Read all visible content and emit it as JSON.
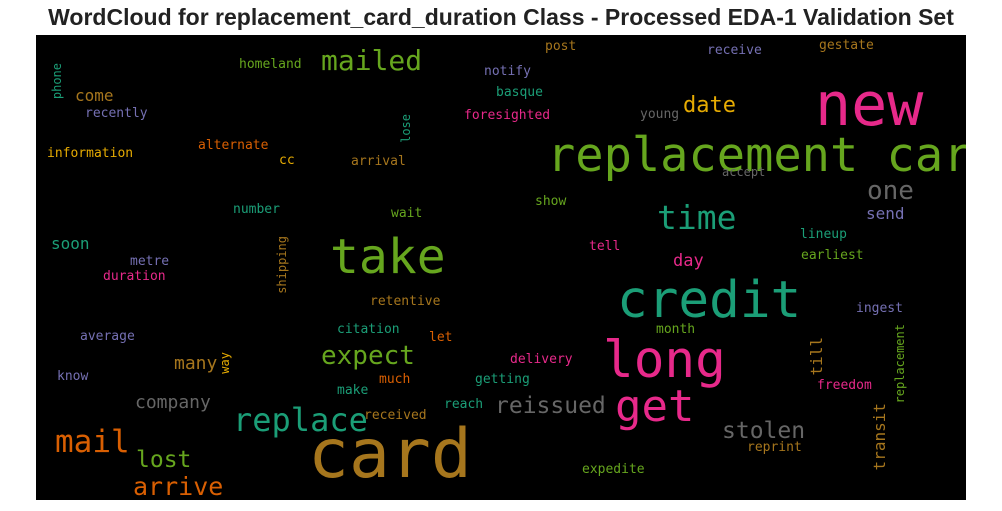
{
  "title": "WordCloud for replacement_card_duration Class - Processed EDA-1 Validation Set",
  "chart_data": {
    "type": "wordcloud",
    "title": "WordCloud for replacement_card_duration Class - Processed EDA-1 Validation Set",
    "background": "#000000",
    "palette": [
      "#1b9e77",
      "#d95f02",
      "#7570b3",
      "#e7298a",
      "#66a61e",
      "#e6ab02",
      "#a6761d",
      "#666666"
    ],
    "words": [
      {
        "text": "new",
        "color": "#e7298a",
        "weight": 60
      },
      {
        "text": "replacement card",
        "color": "#66a61e",
        "weight": 47
      },
      {
        "text": "take",
        "color": "#66a61e",
        "weight": 48
      },
      {
        "text": "credit",
        "color": "#1b9e77",
        "weight": 51
      },
      {
        "text": "long",
        "color": "#e7298a",
        "weight": 51
      },
      {
        "text": "card",
        "color": "#a6761d",
        "weight": 68
      },
      {
        "text": "get",
        "color": "#e7298a",
        "weight": 44
      },
      {
        "text": "mailed",
        "color": "#66a61e",
        "weight": 28
      },
      {
        "text": "time",
        "color": "#1b9e77",
        "weight": 33
      },
      {
        "text": "one",
        "color": "#666666",
        "weight": 26
      },
      {
        "text": "date",
        "color": "#e6ab02",
        "weight": 22
      },
      {
        "text": "expect",
        "color": "#66a61e",
        "weight": 26
      },
      {
        "text": "replace",
        "color": "#1b9e77",
        "weight": 32
      },
      {
        "text": "mail",
        "color": "#d95f02",
        "weight": 31
      },
      {
        "text": "reissued",
        "color": "#666666",
        "weight": 23
      },
      {
        "text": "stolen",
        "color": "#666666",
        "weight": 23
      },
      {
        "text": "lost",
        "color": "#66a61e",
        "weight": 23
      },
      {
        "text": "arrive",
        "color": "#d95f02",
        "weight": 25
      },
      {
        "text": "company",
        "color": "#666666",
        "weight": 18
      },
      {
        "text": "many",
        "color": "#a6761d",
        "weight": 18
      },
      {
        "text": "day",
        "color": "#e7298a",
        "weight": 17
      },
      {
        "text": "send",
        "color": "#7570b3",
        "weight": 16
      },
      {
        "text": "transit",
        "color": "#a6761d",
        "weight": 16
      },
      {
        "text": "till",
        "color": "#a6761d",
        "weight": 16
      },
      {
        "text": "soon",
        "color": "#1b9e77",
        "weight": 16
      },
      {
        "text": "come",
        "color": "#a6761d",
        "weight": 16
      },
      {
        "text": "homeland",
        "color": "#66a61e",
        "weight": 13
      },
      {
        "text": "post",
        "color": "#a6761d",
        "weight": 13
      },
      {
        "text": "receive",
        "color": "#7570b3",
        "weight": 13
      },
      {
        "text": "gestate",
        "color": "#a6761d",
        "weight": 13
      },
      {
        "text": "notify",
        "color": "#7570b3",
        "weight": 13
      },
      {
        "text": "basque",
        "color": "#1b9e77",
        "weight": 13
      },
      {
        "text": "phone",
        "color": "#1b9e77",
        "weight": 12
      },
      {
        "text": "recently",
        "color": "#7570b3",
        "weight": 13
      },
      {
        "text": "foresighted",
        "color": "#e7298a",
        "weight": 13
      },
      {
        "text": "young",
        "color": "#666666",
        "weight": 13
      },
      {
        "text": "lose",
        "color": "#1b9e77",
        "weight": 12
      },
      {
        "text": "information",
        "color": "#e6ab02",
        "weight": 13
      },
      {
        "text": "alternate",
        "color": "#d95f02",
        "weight": 13
      },
      {
        "text": "cc",
        "color": "#e6ab02",
        "weight": 13
      },
      {
        "text": "arrival",
        "color": "#a6761d",
        "weight": 13
      },
      {
        "text": "accept",
        "color": "#666666",
        "weight": 12
      },
      {
        "text": "show",
        "color": "#66a61e",
        "weight": 13
      },
      {
        "text": "number",
        "color": "#1b9e77",
        "weight": 13
      },
      {
        "text": "wait",
        "color": "#66a61e",
        "weight": 13
      },
      {
        "text": "shipping",
        "color": "#a6761d",
        "weight": 12
      },
      {
        "text": "tell",
        "color": "#e7298a",
        "weight": 13
      },
      {
        "text": "lineup",
        "color": "#1b9e77",
        "weight": 13
      },
      {
        "text": "earliest",
        "color": "#66a61e",
        "weight": 13
      },
      {
        "text": "metre",
        "color": "#7570b3",
        "weight": 13
      },
      {
        "text": "duration",
        "color": "#e7298a",
        "weight": 13
      },
      {
        "text": "retentive",
        "color": "#a6761d",
        "weight": 13
      },
      {
        "text": "ingest",
        "color": "#7570b3",
        "weight": 13
      },
      {
        "text": "average",
        "color": "#7570b3",
        "weight": 13
      },
      {
        "text": "citation",
        "color": "#1b9e77",
        "weight": 13
      },
      {
        "text": "let",
        "color": "#d95f02",
        "weight": 13
      },
      {
        "text": "month",
        "color": "#66a61e",
        "weight": 13
      },
      {
        "text": "replacement",
        "color": "#66a61e",
        "weight": 12
      },
      {
        "text": "way",
        "color": "#e6ab02",
        "weight": 12
      },
      {
        "text": "delivery",
        "color": "#e7298a",
        "weight": 13
      },
      {
        "text": "know",
        "color": "#7570b3",
        "weight": 13
      },
      {
        "text": "much",
        "color": "#d95f02",
        "weight": 13
      },
      {
        "text": "make",
        "color": "#1b9e77",
        "weight": 13
      },
      {
        "text": "getting",
        "color": "#1b9e77",
        "weight": 13
      },
      {
        "text": "freedom",
        "color": "#e7298a",
        "weight": 13
      },
      {
        "text": "reach",
        "color": "#1b9e77",
        "weight": 13
      },
      {
        "text": "received",
        "color": "#a6761d",
        "weight": 13
      },
      {
        "text": "reprint",
        "color": "#a6761d",
        "weight": 13
      },
      {
        "text": "expedite",
        "color": "#66a61e",
        "weight": 13
      }
    ]
  }
}
